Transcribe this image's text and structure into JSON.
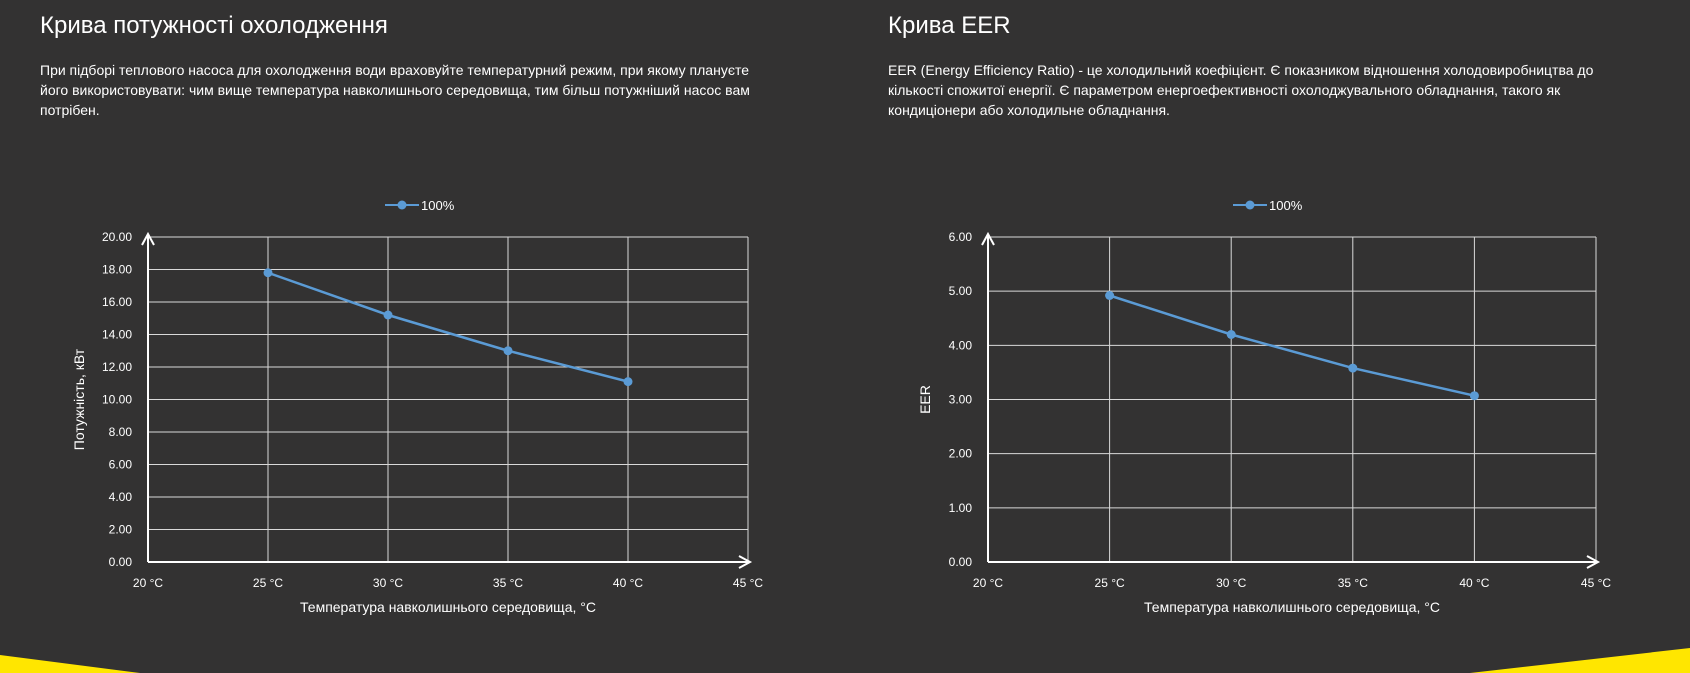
{
  "panels": [
    {
      "title": "Крива потужності охолодження",
      "description": "При підборі теплового насоса для охолодження води враховуйте температурний режим, при якому плануєте його використовувати: чим вище температура навколишнього середовища, тим більш потужніший насос вам потрібен."
    },
    {
      "title": "Крива EER",
      "description": "EER (Energy Efficiency Ratio) - це холодильний коефіцієнт. Є показником відношення холодовиробництва до кількості спожитої енергії. Є параметром енергоефективності охолоджувального обладнання, такого як кондиціонери або холодильне обладнання."
    }
  ],
  "chart_data": [
    {
      "type": "line",
      "title": "",
      "xlabel": "Температура навколишнього середовища, °C",
      "ylabel": "Потужність, кВт",
      "x_ticks": [
        "20 °C",
        "25 °C",
        "30 °C",
        "35 °C",
        "40 °C",
        "45 °C"
      ],
      "y_ticks": [
        "0.00",
        "2.00",
        "4.00",
        "6.00",
        "8.00",
        "10.00",
        "12.00",
        "14.00",
        "16.00",
        "18.00",
        "20.00"
      ],
      "xlim": [
        20,
        45
      ],
      "ylim": [
        0,
        20
      ],
      "grid": true,
      "legend": "top-center",
      "series": [
        {
          "name": "100%",
          "x": [
            25,
            30,
            35,
            40
          ],
          "y": [
            17.8,
            15.2,
            13.0,
            11.1
          ]
        }
      ]
    },
    {
      "type": "line",
      "title": "",
      "xlabel": "Температура навколишнього середовища, °C",
      "ylabel": "EER",
      "x_ticks": [
        "20 °C",
        "25 °C",
        "30 °C",
        "35 °C",
        "40 °C",
        "45 °C"
      ],
      "y_ticks": [
        "0.00",
        "1.00",
        "2.00",
        "3.00",
        "4.00",
        "5.00",
        "6.00"
      ],
      "xlim": [
        20,
        45
      ],
      "ylim": [
        0,
        6
      ],
      "grid": true,
      "legend": "top-center",
      "series": [
        {
          "name": "100%",
          "x": [
            25,
            30,
            35,
            40
          ],
          "y": [
            4.92,
            4.2,
            3.58,
            3.07
          ]
        }
      ]
    }
  ],
  "colors": {
    "background": "#333232",
    "series": "#5b9bd5",
    "grid": "#d9d9d9",
    "accent": "#ffe600"
  }
}
